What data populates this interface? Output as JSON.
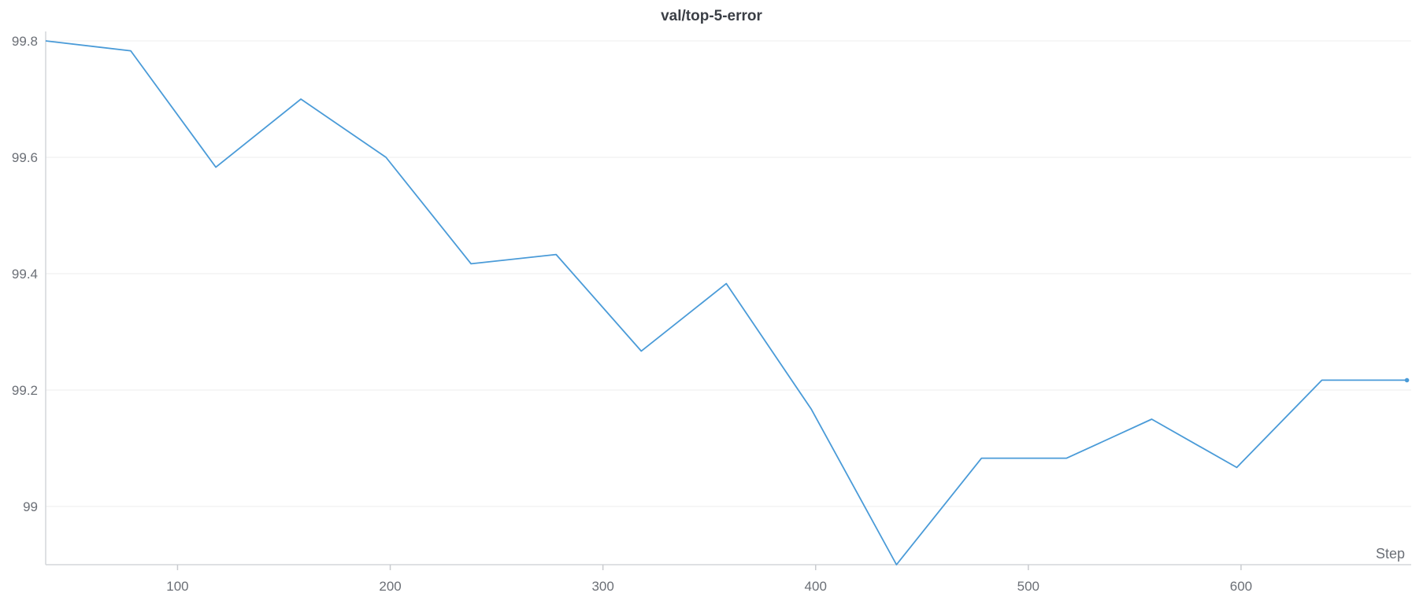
{
  "chart_data": {
    "type": "line",
    "title": "val/top-5-error",
    "xlabel": "Step",
    "ylabel": "",
    "xlim": [
      38,
      680
    ],
    "ylim": [
      98.9,
      99.8
    ],
    "x_ticks": [
      100,
      200,
      300,
      400,
      500,
      600
    ],
    "y_ticks": [
      99,
      99.2,
      99.4,
      99.6,
      99.8
    ],
    "y_tick_labels": [
      "99",
      "99.2",
      "99.4",
      "99.6",
      "99.8"
    ],
    "grid": "horizontal",
    "series": [
      {
        "color": "#4a9bd8",
        "x": [
          38,
          78,
          118,
          158,
          198,
          238,
          278,
          318,
          358,
          398,
          438,
          478,
          518,
          558,
          598,
          638,
          678
        ],
        "y": [
          99.8,
          99.783,
          99.583,
          99.7,
          99.6,
          99.417,
          99.433,
          99.267,
          99.383,
          99.167,
          98.9,
          99.083,
          99.083,
          99.15,
          99.067,
          99.217,
          99.217
        ]
      }
    ]
  }
}
